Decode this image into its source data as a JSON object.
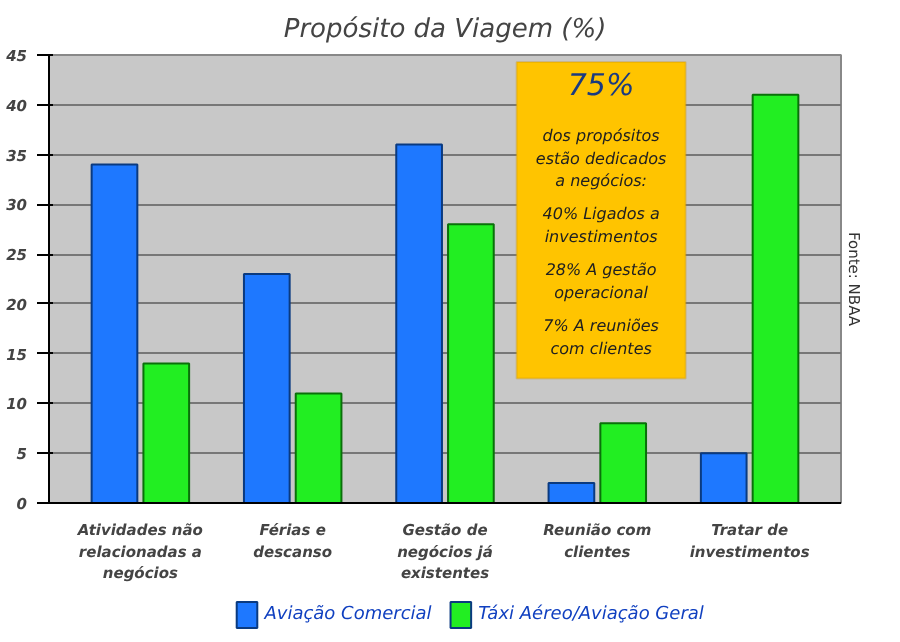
{
  "chart_data": {
    "type": "bar",
    "title": "Propósito da Viagem (%)",
    "categories": [
      "Atividades não relacionadas a negócios",
      "Férias e descanso",
      "Gestão de negócios já existentes",
      "Reunião com clientes",
      "Tratar de investimentos"
    ],
    "series": [
      {
        "name": "Aviação Comercial",
        "color": "#1e78ff",
        "values": [
          34,
          23,
          36,
          2,
          5
        ]
      },
      {
        "name": "Táxi Aéreo/Aviação Geral",
        "color": "#22ee22",
        "values": [
          14,
          11,
          28,
          8,
          41
        ]
      }
    ],
    "ylim": [
      0,
      45
    ],
    "yticks": [
      0,
      5,
      10,
      15,
      20,
      25,
      30,
      35,
      40,
      45
    ],
    "grid": "y",
    "legend": "bottom",
    "annotations": [
      "75%",
      "dos propósitos estão dedicados a negócios:",
      "40% Ligados a investimentos",
      "28% A gestão operacional",
      "7% A reuniões com clientes",
      "Fonte: NBAA"
    ]
  }
}
